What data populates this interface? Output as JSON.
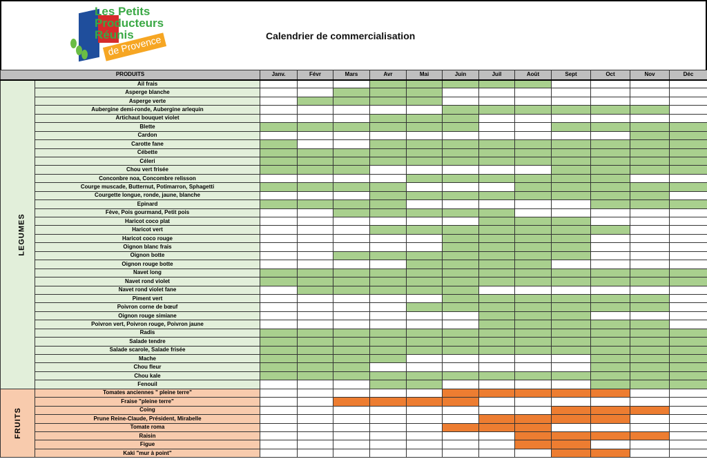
{
  "header": {
    "logo_text": [
      "Les Petits",
      "Producteurs",
      "Réunis",
      "de Provence"
    ],
    "title": "Calendrier de commercialisation"
  },
  "colors": {
    "vegetable_on": "#a9d08e",
    "vegetable_label_bg": "#e2efda",
    "fruit_on": "#ed7d31",
    "fruit_label_bg": "#f8cbad",
    "header_bg": "#bfbfbf"
  },
  "table": {
    "product_header": "PRODUITS",
    "months": [
      "Janv.",
      "Févr",
      "Mars",
      "Avr",
      "Mai",
      "Juin",
      "Juil",
      "Août",
      "Sept",
      "Oct",
      "Nov",
      "Déc"
    ],
    "groups": [
      {
        "category": "LEGUMES",
        "type": "veg",
        "rows": [
          {
            "name": "Ail frais",
            "months": "000111110000"
          },
          {
            "name": "Asperge blanche",
            "months": "001110000000"
          },
          {
            "name": "Asperge verte",
            "months": "011110000000"
          },
          {
            "name": "Aubergine demi-ronde, Aubergine arlequin",
            "months": "000001111110"
          },
          {
            "name": "Artichaut bouquet violet",
            "months": "000111000000"
          },
          {
            "name": "Blette",
            "months": "111111001111"
          },
          {
            "name": "Cardon",
            "months": "000000000011"
          },
          {
            "name": "Carotte fane",
            "months": "100111111111"
          },
          {
            "name": "Cébette",
            "months": "111111111111"
          },
          {
            "name": "Céleri",
            "months": "111111111111"
          },
          {
            "name": "Chou vert frisée",
            "months": "111000001111"
          },
          {
            "name": "Conconbre noa, Concombre relisson",
            "months": "000011111100"
          },
          {
            "name": "Courge muscade, Butternut, Potimarron, Sphagetti",
            "months": "111100011111"
          },
          {
            "name": "Courgette longue, ronde, jaune, blanche",
            "months": "000111111110"
          },
          {
            "name": "Epinard",
            "months": "111100000111"
          },
          {
            "name": "Fève, Pois gourmand, Petit pois",
            "months": "001111100000"
          },
          {
            "name": "Haricot coco plat",
            "months": "000000111000"
          },
          {
            "name": "Haricot vert",
            "months": "000111111100"
          },
          {
            "name": "Haricot coco rouge",
            "months": "000001111000"
          },
          {
            "name": "Oignon blanc frais",
            "months": "000001111000"
          },
          {
            "name": "Oignon botte",
            "months": "001111111000"
          },
          {
            "name": "Oignon rouge botte",
            "months": "000011110000"
          },
          {
            "name": "Navet long",
            "months": "111111111111"
          },
          {
            "name": "Navet rond violet",
            "months": "111111111111"
          },
          {
            "name": "Navet rond violet fane",
            "months": "011111000000"
          },
          {
            "name": "Piment vert",
            "months": "000001111110"
          },
          {
            "name": "Poivron corne de bœuf",
            "months": "000011111110"
          },
          {
            "name": "Oignon rouge simiane",
            "months": "000000111000"
          },
          {
            "name": "Poivron vert, Poivron rouge, Poivron jaune",
            "months": "000000111110"
          },
          {
            "name": "Radis",
            "months": "111111111111"
          },
          {
            "name": "Salade tendre",
            "months": "111111111111"
          },
          {
            "name": "Salade scarole, Salade frisée",
            "months": "111111111111"
          },
          {
            "name": "Mache",
            "months": "111100000111"
          },
          {
            "name": "Chou fleur",
            "months": "111000000111"
          },
          {
            "name": "Chou kale",
            "months": "111111111111"
          },
          {
            "name": "Fenouil",
            "months": "000110000111"
          }
        ]
      },
      {
        "category": "FRUITS",
        "type": "fru",
        "rows": [
          {
            "name": "Tomates anciennes \" pleine terre\"",
            "months": "000001111100"
          },
          {
            "name": "Fraise \"pleine terre\"",
            "months": "001111000000"
          },
          {
            "name": "Coing",
            "months": "000000001110"
          },
          {
            "name": "Prune Reine-Claude, Président, Mirabelle",
            "months": "000000111100"
          },
          {
            "name": "Tomate roma",
            "months": "000001110000"
          },
          {
            "name": "Raisin",
            "months": "000000011110"
          },
          {
            "name": "Figue",
            "months": "000000011000"
          },
          {
            "name": "Kaki \"mur à point\"",
            "months": "000000001100"
          }
        ]
      }
    ]
  }
}
